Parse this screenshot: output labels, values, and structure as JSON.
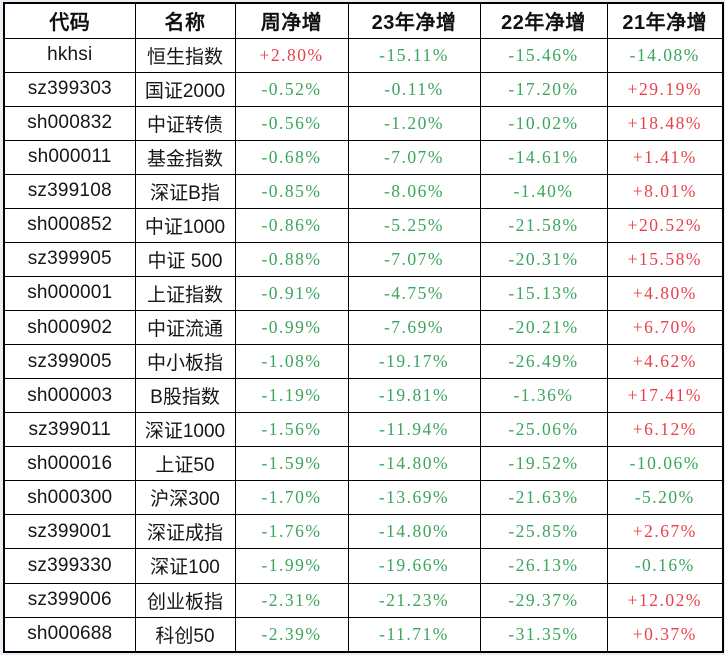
{
  "colors": {
    "up_red": "#e8414b",
    "down_green": "#3aa55d",
    "text_black": "#161616",
    "grid_border": "#000000",
    "page_background": "#e9eef5",
    "cell_background": "#ffffff"
  },
  "table": {
    "headers": [
      "代码",
      "名称",
      "周净增",
      "23年净增",
      "22年净增",
      "21年净增"
    ],
    "rows": [
      {
        "code": "hkhsi",
        "name": "恒生指数",
        "values": [
          "+2.80%",
          "-15.11%",
          "-15.46%",
          "-14.08%"
        ]
      },
      {
        "code": "sz399303",
        "name": "国证2000",
        "values": [
          "-0.52%",
          "-0.11%",
          "-17.20%",
          "+29.19%"
        ]
      },
      {
        "code": "sh000832",
        "name": "中证转债",
        "values": [
          "-0.56%",
          "-1.20%",
          "-10.02%",
          "+18.48%"
        ]
      },
      {
        "code": "sh000011",
        "name": "基金指数",
        "values": [
          "-0.68%",
          "-7.07%",
          "-14.61%",
          "+1.41%"
        ]
      },
      {
        "code": "sz399108",
        "name": "深证B指",
        "values": [
          "-0.85%",
          "-8.06%",
          "-1.40%",
          "+8.01%"
        ]
      },
      {
        "code": "sh000852",
        "name": "中证1000",
        "values": [
          "-0.86%",
          "-5.25%",
          "-21.58%",
          "+20.52%"
        ]
      },
      {
        "code": "sz399905",
        "name": "中证 500",
        "values": [
          "-0.88%",
          "-7.07%",
          "-20.31%",
          "+15.58%"
        ]
      },
      {
        "code": "sh000001",
        "name": "上证指数",
        "values": [
          "-0.91%",
          "-4.75%",
          "-15.13%",
          "+4.80%"
        ]
      },
      {
        "code": "sh000902",
        "name": "中证流通",
        "values": [
          "-0.99%",
          "-7.69%",
          "-20.21%",
          "+6.70%"
        ]
      },
      {
        "code": "sz399005",
        "name": "中小板指",
        "values": [
          "-1.08%",
          "-19.17%",
          "-26.49%",
          "+4.62%"
        ]
      },
      {
        "code": "sh000003",
        "name": "B股指数",
        "values": [
          "-1.19%",
          "-19.81%",
          "-1.36%",
          "+17.41%"
        ]
      },
      {
        "code": "sz399011",
        "name": "深证1000",
        "values": [
          "-1.56%",
          "-11.94%",
          "-25.06%",
          "+6.12%"
        ]
      },
      {
        "code": "sh000016",
        "name": "上证50",
        "values": [
          "-1.59%",
          "-14.80%",
          "-19.52%",
          "-10.06%"
        ]
      },
      {
        "code": "sh000300",
        "name": "沪深300",
        "values": [
          "-1.70%",
          "-13.69%",
          "-21.63%",
          "-5.20%"
        ]
      },
      {
        "code": "sz399001",
        "name": "深证成指",
        "values": [
          "-1.76%",
          "-14.80%",
          "-25.85%",
          "+2.67%"
        ]
      },
      {
        "code": "sz399330",
        "name": "深证100",
        "values": [
          "-1.99%",
          "-19.66%",
          "-26.13%",
          "-0.16%"
        ]
      },
      {
        "code": "sz399006",
        "name": "创业板指",
        "values": [
          "-2.31%",
          "-21.23%",
          "-29.37%",
          "+12.02%"
        ]
      },
      {
        "code": "sh000688",
        "name": "科创50",
        "values": [
          "-2.39%",
          "-11.71%",
          "-31.35%",
          "+0.37%"
        ]
      }
    ]
  },
  "chart_data": {
    "type": "table",
    "title": "",
    "columns": [
      "代码",
      "名称",
      "周净增",
      "23年净增",
      "22年净增",
      "21年净增"
    ],
    "rows": [
      [
        "hkhsi",
        "恒生指数",
        "+2.80%",
        "-15.11%",
        "-15.46%",
        "-14.08%"
      ],
      [
        "sz399303",
        "国证2000",
        "-0.52%",
        "-0.11%",
        "-17.20%",
        "+29.19%"
      ],
      [
        "sh000832",
        "中证转债",
        "-0.56%",
        "-1.20%",
        "-10.02%",
        "+18.48%"
      ],
      [
        "sh000011",
        "基金指数",
        "-0.68%",
        "-7.07%",
        "-14.61%",
        "+1.41%"
      ],
      [
        "sz399108",
        "深证B指",
        "-0.85%",
        "-8.06%",
        "-1.40%",
        "+8.01%"
      ],
      [
        "sh000852",
        "中证1000",
        "-0.86%",
        "-5.25%",
        "-21.58%",
        "+20.52%"
      ],
      [
        "sz399905",
        "中证 500",
        "-0.88%",
        "-7.07%",
        "-20.31%",
        "+15.58%"
      ],
      [
        "sh000001",
        "上证指数",
        "-0.91%",
        "-4.75%",
        "-15.13%",
        "+4.80%"
      ],
      [
        "sh000902",
        "中证流通",
        "-0.99%",
        "-7.69%",
        "-20.21%",
        "+6.70%"
      ],
      [
        "sz399005",
        "中小板指",
        "-1.08%",
        "-19.17%",
        "-26.49%",
        "+4.62%"
      ],
      [
        "sh000003",
        "B股指数",
        "-1.19%",
        "-19.81%",
        "-1.36%",
        "+17.41%"
      ],
      [
        "sz399011",
        "深证1000",
        "-1.56%",
        "-11.94%",
        "-25.06%",
        "+6.12%"
      ],
      [
        "sh000016",
        "上证50",
        "-1.59%",
        "-14.80%",
        "-19.52%",
        "-10.06%"
      ],
      [
        "sh000300",
        "沪深300",
        "-1.70%",
        "-13.69%",
        "-21.63%",
        "-5.20%"
      ],
      [
        "sz399001",
        "深证成指",
        "-1.76%",
        "-14.80%",
        "-25.85%",
        "+2.67%"
      ],
      [
        "sz399330",
        "深证100",
        "-1.99%",
        "-19.66%",
        "-26.13%",
        "-0.16%"
      ],
      [
        "sz399006",
        "创业板指",
        "-2.31%",
        "-21.23%",
        "-29.37%",
        "+12.02%"
      ],
      [
        "sh000688",
        "科创50",
        "-2.39%",
        "-11.71%",
        "-31.35%",
        "+0.37%"
      ]
    ],
    "notes": "Positive values rendered in red (up), negative values rendered in green (down), per Chinese market color convention."
  }
}
